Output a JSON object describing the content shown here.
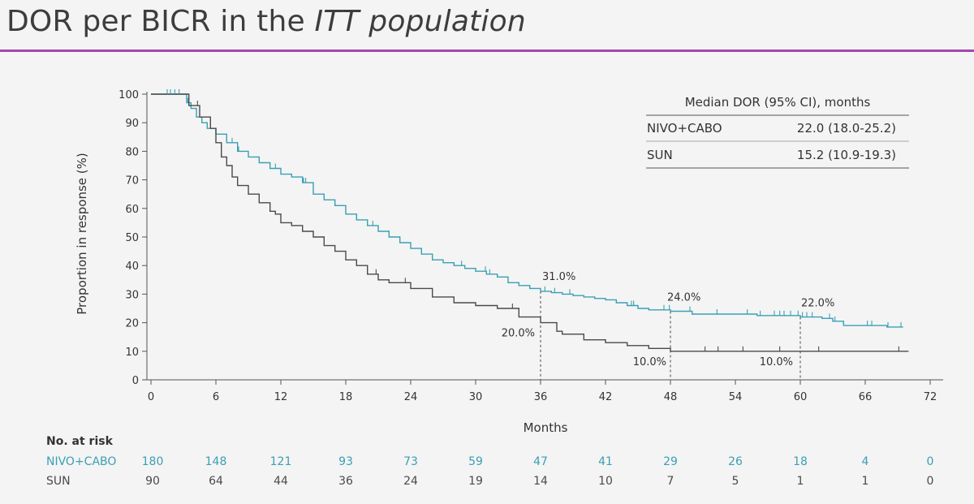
{
  "title": {
    "prefix": "DOR per BICR in the ",
    "emphasis": "ITT population"
  },
  "colors": {
    "accent_rule": "#a347ad",
    "nivo_cabo": "#3a9fb5",
    "sun": "#4a4a4a"
  },
  "chart_data": {
    "type": "line",
    "subtype": "kaplan-meier",
    "xlabel": "Months",
    "ylabel": "Proportion in response (%)",
    "xlim": [
      0,
      72
    ],
    "ylim": [
      0,
      100
    ],
    "x_ticks": [
      0,
      6,
      12,
      18,
      24,
      30,
      36,
      42,
      48,
      54,
      60,
      66,
      72
    ],
    "y_ticks": [
      0,
      10,
      20,
      30,
      40,
      50,
      60,
      70,
      80,
      90,
      100
    ],
    "grid": false,
    "series": [
      {
        "name": "NIVO+CABO",
        "color": "#3a9fb5",
        "x": [
          0,
          3,
          3.3,
          3.7,
          4.2,
          4.7,
          5.2,
          6,
          7,
          8,
          9,
          10,
          11,
          12,
          13,
          14,
          15,
          16,
          17,
          18,
          19,
          20,
          21,
          22,
          23,
          24,
          25,
          26,
          27,
          28,
          29,
          30,
          31,
          32,
          33,
          34,
          35,
          36,
          37,
          38,
          39,
          40,
          41,
          42,
          43,
          44,
          45,
          46,
          48,
          50,
          52,
          54,
          56,
          58,
          60,
          62,
          63,
          64,
          66,
          68,
          69.5
        ],
        "y": [
          100,
          100,
          97,
          95,
          92,
          90,
          88,
          86,
          83,
          80,
          78,
          76,
          74,
          72,
          71,
          69,
          65,
          63,
          61,
          58,
          56,
          54,
          52,
          50,
          48,
          46,
          44,
          42,
          41,
          40,
          39,
          38,
          37,
          36,
          34,
          33,
          32,
          31,
          30.5,
          30,
          29.5,
          29,
          28.5,
          28,
          27,
          26,
          25,
          24.5,
          24,
          23,
          23,
          23,
          22.5,
          22.5,
          22,
          21.5,
          20.5,
          19,
          19,
          18.5,
          18.5
        ],
        "censor_x": [
          1.5,
          1.8,
          2.2,
          2.6,
          3.4,
          7.5,
          8.1,
          11.5,
          14.1,
          14.3,
          20.5,
          28.7,
          30.9,
          31.3,
          36.4,
          37.3,
          38.7,
          44.4,
          44.6,
          47.4,
          47.9,
          49.8,
          52.3,
          55.1,
          56.3,
          57.6,
          58.1,
          58.5,
          59.1,
          59.8,
          60.2,
          60.6,
          61.1,
          62.7,
          63.2,
          66.2,
          66.6,
          68.1,
          69.3
        ],
        "annotations": [
          {
            "x": 36,
            "y": 31,
            "text": "31.0%"
          },
          {
            "x": 48,
            "y": 24,
            "text": "24.0%"
          },
          {
            "x": 60,
            "y": 22,
            "text": "22.0%"
          }
        ]
      },
      {
        "name": "SUN",
        "color": "#4a4a4a",
        "x": [
          0,
          3,
          3.5,
          4.5,
          5.5,
          6,
          6.5,
          7,
          7.5,
          8,
          9,
          10,
          11,
          11.5,
          12,
          13,
          14,
          15,
          16,
          17,
          18,
          19,
          20,
          21,
          22,
          24,
          26,
          28,
          30,
          32,
          34,
          36,
          37.5,
          38,
          40,
          42,
          44,
          46,
          48,
          70
        ],
        "y": [
          100,
          100,
          96,
          92,
          88,
          83,
          78,
          75,
          71,
          68,
          65,
          62,
          59,
          58,
          55,
          54,
          52,
          50,
          47,
          45,
          42,
          40,
          37,
          35,
          34,
          32,
          29,
          27,
          26,
          25,
          22,
          20,
          17,
          16,
          14,
          13,
          12,
          11,
          10,
          10
        ],
        "censor_x": [
          4.3,
          20.8,
          23.5,
          33.4,
          51.2,
          52.4,
          54.7,
          58.1,
          61.7,
          69.1
        ],
        "annotations": [
          {
            "x": 36,
            "y": 20,
            "text": "20.0%"
          },
          {
            "x": 48,
            "y": 10,
            "text": "10.0%"
          },
          {
            "x": 60,
            "y": 10,
            "text": "10.0%"
          }
        ]
      }
    ],
    "median_table": {
      "header": "Median DOR (95% CI), months",
      "rows": [
        {
          "arm": "NIVO+CABO",
          "value": "22.0 (18.0-25.2)"
        },
        {
          "arm": "SUN",
          "value": "15.2 (10.9-19.3)"
        }
      ]
    },
    "at_risk": {
      "label": "No. at risk",
      "times": [
        0,
        6,
        12,
        18,
        24,
        30,
        36,
        42,
        48,
        54,
        60,
        66,
        72
      ],
      "rows": [
        {
          "arm": "NIVO+CABO",
          "counts": [
            "180",
            "148",
            "121",
            "93",
            "73",
            "59",
            "47",
            "41",
            "29",
            "26",
            "18",
            "4",
            "0"
          ]
        },
        {
          "arm": "SUN",
          "counts": [
            "90",
            "64",
            "44",
            "36",
            "24",
            "19",
            "14",
            "10",
            "7",
            "5",
            "1",
            "1",
            "0"
          ]
        }
      ]
    }
  }
}
